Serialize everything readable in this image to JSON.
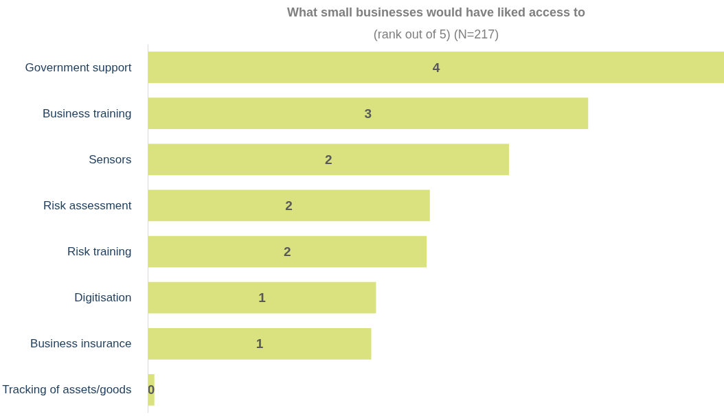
{
  "chart_data": {
    "type": "bar",
    "orientation": "horizontal",
    "title": "What small businesses would have liked access to",
    "subtitle": "(rank out of 5) (N=217)",
    "categories": [
      "Government support",
      "Business training",
      "Sensors",
      "Risk assessment",
      "Risk training",
      "Digitisation",
      "Business insurance",
      "Tracking of assets/goods"
    ],
    "values": [
      3.64,
      2.78,
      2.28,
      1.78,
      1.76,
      1.44,
      1.41,
      0.04
    ],
    "value_labels": [
      "4",
      "3",
      "2",
      "2",
      "2",
      "1",
      "1",
      "0"
    ],
    "color": "#d9e27e"
  }
}
